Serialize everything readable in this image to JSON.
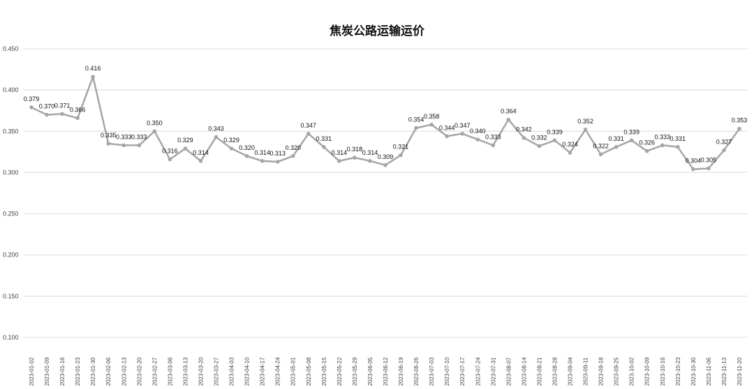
{
  "chart_data": {
    "type": "line",
    "title": "焦炭公路运输运价",
    "xlabel": "",
    "ylabel": "",
    "ylim": [
      0.1,
      0.45
    ],
    "y_ticks": [
      "0.100",
      "0.150",
      "0.200",
      "0.250",
      "0.300",
      "0.350",
      "0.400",
      "0.450"
    ],
    "grid": true,
    "line_color": "#a6a6a6",
    "grid_color": "#d9d9d9",
    "x": [
      "2023-01-02",
      "2023-01-09",
      "2023-01-16",
      "2023-01-23",
      "2023-01-30",
      "2023-02-06",
      "2023-02-13",
      "2023-02-20",
      "2023-02-27",
      "2023-03-06",
      "2023-03-13",
      "2023-03-20",
      "2023-03-27",
      "2023-04-03",
      "2023-04-10",
      "2023-04-17",
      "2023-04-24",
      "2023-05-01",
      "2023-05-08",
      "2023-05-15",
      "2023-05-22",
      "2023-05-29",
      "2023-06-05",
      "2023-06-12",
      "2023-06-19",
      "2023-06-26",
      "2023-07-03",
      "2023-07-10",
      "2023-07-17",
      "2023-07-24",
      "2023-07-31",
      "2023-08-07",
      "2023-08-14",
      "2023-08-21",
      "2023-08-28",
      "2023-09-04",
      "2023-09-11",
      "2023-09-18",
      "2023-09-25",
      "2023-10-02",
      "2023-10-09",
      "2023-10-16",
      "2023-10-23",
      "2023-10-30",
      "2023-11-06",
      "2023-11-13",
      "2023-11-20"
    ],
    "values": [
      0.379,
      0.37,
      0.371,
      0.366,
      0.416,
      0.335,
      0.333,
      0.333,
      0.35,
      0.316,
      0.329,
      0.314,
      0.343,
      0.329,
      0.32,
      0.314,
      0.313,
      0.32,
      0.347,
      0.331,
      0.314,
      0.318,
      0.314,
      0.309,
      0.321,
      0.354,
      0.358,
      0.344,
      0.347,
      0.34,
      0.333,
      0.364,
      0.342,
      0.332,
      0.339,
      0.324,
      0.352,
      0.322,
      0.331,
      0.339,
      0.326,
      0.333,
      0.331,
      0.304,
      0.305,
      0.327,
      0.353
    ],
    "labels": [
      "0.379",
      "0.370",
      "0.371",
      "0.366",
      "0.416",
      "0.335",
      "0.333",
      "0.333",
      "0.350",
      "0.316",
      "0.329",
      "0.314",
      "0.343",
      "0.329",
      "0.320",
      "0.314",
      "0.313",
      "0.320",
      "0.347",
      "0.331",
      "0.314",
      "0.318",
      "0.314",
      "0.309",
      "0.321",
      "0.354",
      "0.358",
      "0.344",
      "0.347",
      "0.340",
      "0.333",
      "0.364",
      "0.342",
      "0.332",
      "0.339",
      "0.324",
      "0.352",
      "0.322",
      "0.331",
      "0.339",
      "0.326",
      "0.333",
      "0.331",
      "0.304",
      "0.305",
      "0.327",
      "0.353"
    ]
  }
}
